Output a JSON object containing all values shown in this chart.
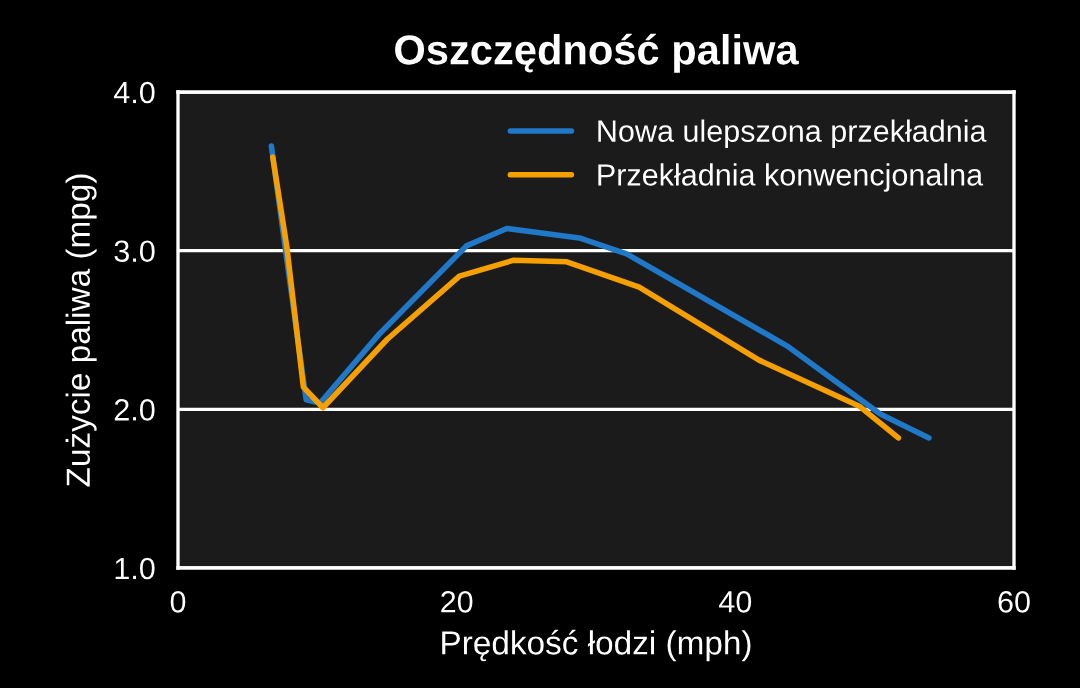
{
  "chart_data": {
    "type": "line",
    "title": "Oszczędność paliwa",
    "xlabel": "Prędkość łodzi (mph)",
    "ylabel": "Zużycie paliwa (mpg)",
    "xlim": [
      0,
      60
    ],
    "xticks": [
      0,
      20,
      40,
      60
    ],
    "ylim": [
      1.0,
      4.0
    ],
    "yticks": [
      {
        "value": 1.0,
        "label": "1.0"
      },
      {
        "value": 2.0,
        "label": "2.0"
      },
      {
        "value": 3.0,
        "label": "3.0"
      },
      {
        "value": 4.0,
        "label": "4.0"
      }
    ],
    "grid": "y",
    "legend": "top right",
    "line_style": "solid",
    "series": [
      {
        "name": "Nowa ulepszona przekładnia",
        "color": "#1f78c8",
        "x": [
          6.7,
          8.0,
          9.2,
          10.2,
          14.5,
          20.7,
          23.6,
          28.8,
          32.2,
          43.7,
          50.4,
          53.9
        ],
        "values": [
          3.66,
          2.82,
          2.06,
          2.04,
          2.48,
          3.03,
          3.14,
          3.08,
          2.98,
          2.4,
          1.97,
          1.82
        ]
      },
      {
        "name": "Przekładnia konwencjonalna",
        "color": "#f5a000",
        "x": [
          6.8,
          7.8,
          9.0,
          10.4,
          15.0,
          20.2,
          24.1,
          27.9,
          33.1,
          41.7,
          48.9,
          51.7
        ],
        "values": [
          3.59,
          3.03,
          2.14,
          2.01,
          2.44,
          2.84,
          2.94,
          2.93,
          2.77,
          2.31,
          2.02,
          1.82
        ]
      }
    ]
  }
}
